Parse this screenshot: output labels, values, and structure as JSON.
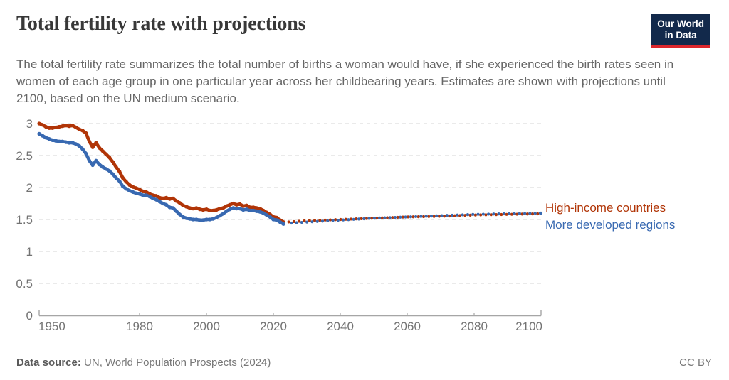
{
  "header": {
    "title": "Total fertility rate with projections",
    "subtitle": "The total fertility rate summarizes the total number of births a woman would have, if she experienced the birth rates seen in women of each age group in one particular year across her childbearing years. Estimates are shown with projections until 2100, based on the UN medium scenario."
  },
  "logo": {
    "line1": "Our World",
    "line2": "in Data",
    "bg_color": "#12294b",
    "stripe_color": "#dc262c"
  },
  "footer": {
    "source_label": "Data source:",
    "source_text": " UN, World Population Prospects (2024)",
    "license": "CC BY"
  },
  "colors": {
    "high_income": "#B13507",
    "more_developed": "#3869B1",
    "gridline": "#dedede",
    "axis": "#a6a6a6",
    "tick_label": "#737373"
  },
  "chart_data": {
    "type": "line",
    "title": "Total fertility rate with projections",
    "xlabel": "",
    "ylabel": "",
    "x_range": [
      1950,
      2100
    ],
    "x_ticks": [
      1950,
      1980,
      2000,
      2020,
      2040,
      2060,
      2080,
      2100
    ],
    "y_range": [
      0,
      3
    ],
    "y_ticks": [
      0,
      0.5,
      1,
      1.5,
      2,
      2.5,
      3
    ],
    "grid": true,
    "legend_position": "right-of-line-end",
    "projection_start": 2024,
    "series": [
      {
        "name": "High-income countries",
        "color": "#B13507",
        "start_year": 1950,
        "end_year": 2023,
        "values": [
          3.0,
          2.98,
          2.95,
          2.93,
          2.93,
          2.94,
          2.95,
          2.96,
          2.97,
          2.96,
          2.97,
          2.94,
          2.91,
          2.89,
          2.85,
          2.72,
          2.63,
          2.7,
          2.62,
          2.57,
          2.52,
          2.47,
          2.4,
          2.32,
          2.25,
          2.15,
          2.09,
          2.04,
          2.01,
          1.99,
          1.97,
          1.94,
          1.93,
          1.9,
          1.88,
          1.87,
          1.84,
          1.83,
          1.84,
          1.82,
          1.83,
          1.79,
          1.76,
          1.72,
          1.7,
          1.68,
          1.67,
          1.68,
          1.66,
          1.65,
          1.66,
          1.64,
          1.64,
          1.65,
          1.67,
          1.68,
          1.71,
          1.73,
          1.75,
          1.73,
          1.74,
          1.71,
          1.72,
          1.69,
          1.69,
          1.68,
          1.67,
          1.64,
          1.61,
          1.58,
          1.54,
          1.53,
          1.49,
          1.46
        ],
        "projection": [
          [
            2024,
            1.46
          ],
          [
            2030,
            1.48
          ],
          [
            2040,
            1.5
          ],
          [
            2050,
            1.52
          ],
          [
            2060,
            1.54
          ],
          [
            2070,
            1.55
          ],
          [
            2080,
            1.57
          ],
          [
            2090,
            1.58
          ],
          [
            2100,
            1.59
          ]
        ]
      },
      {
        "name": "More developed regions",
        "color": "#3869B1",
        "start_year": 1950,
        "end_year": 2023,
        "values": [
          2.84,
          2.81,
          2.78,
          2.76,
          2.74,
          2.73,
          2.72,
          2.72,
          2.71,
          2.7,
          2.7,
          2.68,
          2.65,
          2.6,
          2.53,
          2.42,
          2.35,
          2.42,
          2.36,
          2.32,
          2.29,
          2.26,
          2.21,
          2.15,
          2.1,
          2.02,
          1.98,
          1.95,
          1.93,
          1.91,
          1.9,
          1.88,
          1.88,
          1.86,
          1.83,
          1.81,
          1.78,
          1.75,
          1.73,
          1.69,
          1.68,
          1.63,
          1.58,
          1.54,
          1.52,
          1.51,
          1.5,
          1.5,
          1.49,
          1.49,
          1.5,
          1.5,
          1.51,
          1.53,
          1.56,
          1.59,
          1.63,
          1.66,
          1.68,
          1.67,
          1.67,
          1.65,
          1.66,
          1.64,
          1.64,
          1.63,
          1.62,
          1.6,
          1.57,
          1.54,
          1.5,
          1.49,
          1.46,
          1.43
        ],
        "projection": [
          [
            2024,
            1.44
          ],
          [
            2030,
            1.46
          ],
          [
            2040,
            1.49
          ],
          [
            2050,
            1.52
          ],
          [
            2060,
            1.54
          ],
          [
            2070,
            1.56
          ],
          [
            2080,
            1.58
          ],
          [
            2090,
            1.59
          ],
          [
            2100,
            1.6
          ]
        ]
      }
    ]
  }
}
